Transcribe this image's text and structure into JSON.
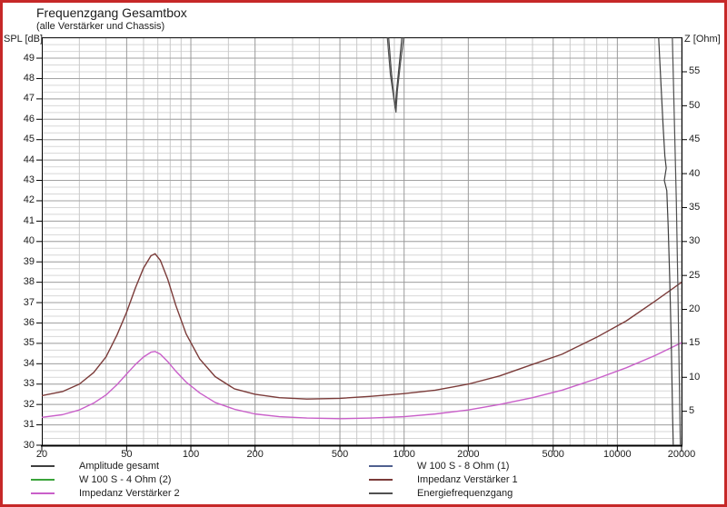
{
  "header": {
    "title": "Frequenzgang Gesamtbox",
    "subtitle": "(alle Verstärker und Chassis)"
  },
  "axes": {
    "y_left": {
      "label": "SPL [dB]",
      "unit": "dB",
      "min": 30,
      "max": 50,
      "ticks": [
        49,
        48,
        47,
        46,
        45,
        44,
        43,
        42,
        41,
        40,
        39,
        38,
        37,
        36,
        35,
        34,
        33,
        32,
        31,
        30
      ]
    },
    "y_right": {
      "label": "Z [Ohm]",
      "unit": "Ohm",
      "min": 0,
      "max": 60,
      "ticks": [
        55,
        50,
        45,
        40,
        35,
        30,
        25,
        20,
        15,
        10,
        5
      ]
    },
    "x": {
      "unit": "Hz",
      "scale": "log",
      "min": 20,
      "max": 20000,
      "ticks": [
        20,
        50,
        100,
        200,
        500,
        1000,
        2000,
        5000,
        10000,
        20000
      ]
    }
  },
  "legend": {
    "columns": [
      [
        "Amplitude gesamt",
        "W 100 S - 4 Ohm (2)",
        "Impedanz Verstärker 2"
      ],
      [
        "W 100 S - 8 Ohm (1)",
        "Impedanz Verstärker 1",
        "Energiefrequenzgang"
      ]
    ]
  },
  "colors": {
    "window_border": "#c62828",
    "grid_ohm_minor": "#d7d7d7",
    "grid_db": "#a3a3a3",
    "grid_freq_minor": "#c9c9c9",
    "grid_freq_major": "#9a9a9a",
    "axis": "#000000"
  },
  "chart_data": {
    "type": "line",
    "title": "Frequenzgang Gesamtbox",
    "subtitle": "(alle Verstärker und Chassis)",
    "x_axis": {
      "scale": "log",
      "min": 20,
      "max": 20000,
      "tick_labels": [
        20,
        50,
        100,
        200,
        500,
        1000,
        2000,
        5000,
        10000,
        20000
      ],
      "major_gridlines": [
        50,
        100,
        200,
        500,
        1000,
        2000,
        5000,
        10000,
        20000
      ],
      "minor_gridlines": [
        30,
        40,
        60,
        70,
        80,
        90,
        150,
        300,
        400,
        600,
        700,
        800,
        900,
        1500,
        3000,
        4000,
        6000,
        7000,
        8000,
        9000,
        15000
      ]
    },
    "y_axis_left": {
      "label": "SPL [dB]",
      "min": 30,
      "max": 50,
      "tick_step": 1,
      "gridline_step": 1
    },
    "y_axis_right": {
      "label": "Z [Ohm]",
      "min": 0,
      "max": 60,
      "tick_step": 5,
      "gridline_step": 1
    },
    "series": [
      {
        "name": "Amplitude gesamt",
        "color": "#3f3f3f",
        "axis": "left",
        "unit": "dB",
        "segments": [
          [
            [
              845,
              50.1
            ],
            [
              870,
              48.4
            ],
            [
              895,
              47.1
            ],
            [
              908,
              46.55
            ],
            [
              920,
              47.3
            ],
            [
              945,
              48.5
            ],
            [
              978,
              50.1
            ]
          ],
          [
            [
              15600,
              50.1
            ],
            [
              16000,
              47.8
            ],
            [
              16400,
              45.6
            ],
            [
              16700,
              44.2
            ],
            [
              16950,
              43.6
            ],
            [
              16600,
              43.0
            ],
            [
              17050,
              42.5
            ],
            [
              17300,
              40.8
            ],
            [
              17600,
              38.2
            ],
            [
              17900,
              35.0
            ],
            [
              18150,
              31.5
            ],
            [
              18300,
              29.8
            ]
          ]
        ]
      },
      {
        "name": "W 100 S - 4 Ohm (2)",
        "color": "#3aa43a",
        "axis": "left",
        "unit": "dB",
        "segments": []
      },
      {
        "name": "Impedanz Verstärker 2",
        "color": "#c95fc9",
        "axis": "right",
        "unit": "Ohm",
        "segments": [
          [
            [
              20,
              4.1
            ],
            [
              25,
              4.5
            ],
            [
              30,
              5.2
            ],
            [
              35,
              6.2
            ],
            [
              40,
              7.4
            ],
            [
              45,
              8.9
            ],
            [
              50,
              10.5
            ],
            [
              55,
              11.9
            ],
            [
              60,
              13.0
            ],
            [
              65,
              13.7
            ],
            [
              68,
              13.8
            ],
            [
              72,
              13.4
            ],
            [
              78,
              12.3
            ],
            [
              85,
              10.9
            ],
            [
              95,
              9.3
            ],
            [
              110,
              7.7
            ],
            [
              130,
              6.3
            ],
            [
              160,
              5.3
            ],
            [
              200,
              4.6
            ],
            [
              260,
              4.2
            ],
            [
              350,
              4.0
            ],
            [
              500,
              3.9
            ],
            [
              700,
              4.0
            ],
            [
              1000,
              4.2
            ],
            [
              1400,
              4.6
            ],
            [
              2000,
              5.2
            ],
            [
              2800,
              6.0
            ],
            [
              4000,
              7.0
            ],
            [
              5500,
              8.1
            ],
            [
              8000,
              9.8
            ],
            [
              11000,
              11.4
            ],
            [
              15000,
              13.2
            ],
            [
              20000,
              15.1
            ]
          ]
        ]
      },
      {
        "name": "W 100 S - 8 Ohm (1)",
        "color": "#50608f",
        "axis": "left",
        "unit": "dB",
        "segments": []
      },
      {
        "name": "Impedanz Verstärker 1",
        "color": "#7b3b39",
        "axis": "right",
        "unit": "Ohm",
        "segments": [
          [
            [
              20,
              7.3
            ],
            [
              25,
              7.9
            ],
            [
              30,
              9.0
            ],
            [
              35,
              10.7
            ],
            [
              40,
              13.0
            ],
            [
              45,
              16.2
            ],
            [
              50,
              19.6
            ],
            [
              55,
              23.2
            ],
            [
              60,
              26.1
            ],
            [
              65,
              27.9
            ],
            [
              68,
              28.2
            ],
            [
              72,
              27.2
            ],
            [
              78,
              24.4
            ],
            [
              85,
              20.6
            ],
            [
              95,
              16.4
            ],
            [
              110,
              12.7
            ],
            [
              130,
              10.1
            ],
            [
              160,
              8.3
            ],
            [
              200,
              7.5
            ],
            [
              260,
              7.0
            ],
            [
              350,
              6.8
            ],
            [
              500,
              6.9
            ],
            [
              700,
              7.2
            ],
            [
              1000,
              7.6
            ],
            [
              1400,
              8.1
            ],
            [
              2000,
              9.0
            ],
            [
              2800,
              10.2
            ],
            [
              4000,
              11.9
            ],
            [
              5500,
              13.4
            ],
            [
              8000,
              15.9
            ],
            [
              11000,
              18.3
            ],
            [
              15000,
              21.2
            ],
            [
              20000,
              24.0
            ]
          ]
        ]
      },
      {
        "name": "Energiefrequenzgang",
        "color": "#505050",
        "axis": "left",
        "unit": "dB",
        "segments": [
          [
            [
              833,
              50.1
            ],
            [
              862,
              48.2
            ],
            [
              898,
              46.9
            ],
            [
              916,
              46.35
            ],
            [
              930,
              47.4
            ],
            [
              960,
              48.7
            ],
            [
              998,
              50.1
            ]
          ],
          [
            [
              18100,
              50.1
            ],
            [
              18500,
              46.0
            ],
            [
              18900,
              42.0
            ],
            [
              19200,
              38.0
            ],
            [
              19500,
              33.5
            ],
            [
              19700,
              30.5
            ],
            [
              19760,
              29.8
            ]
          ]
        ]
      }
    ]
  }
}
